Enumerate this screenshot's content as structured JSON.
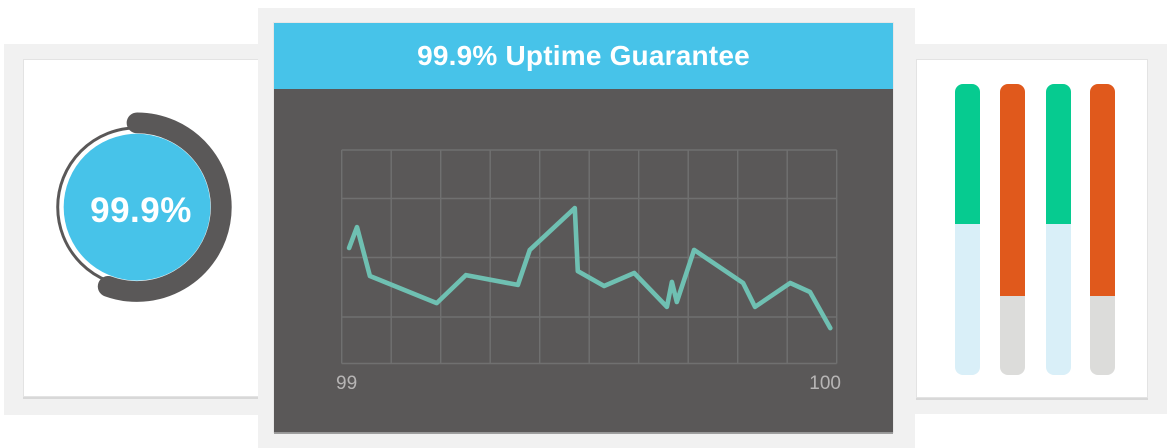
{
  "left_panel": {
    "gauge_label": "99.9%"
  },
  "center_panel": {
    "title": "99.9% Uptime Guarantee",
    "x_tick_left": "99",
    "x_tick_right": "100"
  },
  "colors": {
    "accent_blue": "#47c3e9",
    "dark_gray": "#5a5858",
    "frame_gray": "#f1f1f1",
    "teal_line": "#6fc0b2",
    "grid_gray": "#707070",
    "tick_gray": "#b7b5b5",
    "gauge_fill": "#47c3e9",
    "gauge_ring": "#5a5858",
    "bar_green": "#06cb90",
    "bar_orange": "#e0591c",
    "bar_lightblue": "#d9eff8",
    "bar_lightgray": "#dcdcda"
  },
  "chart_data": [
    {
      "type": "pie",
      "subtype": "gauge",
      "label": "99.9%",
      "value_percent": 99.9,
      "fill_color": "#47c3e9",
      "ring_color": "#5a5858"
    },
    {
      "type": "line",
      "title": "99.9% Uptime Guarantee",
      "line_color": "#6fc0b2",
      "grid": true,
      "x_range": [
        99,
        100
      ],
      "x_tick_labels": [
        "99",
        "100"
      ],
      "y_axis": "unlabeled, normalized 0-1 (estimated from pixels)",
      "points": [
        [
          99.015,
          0.541
        ],
        [
          99.031,
          0.639
        ],
        [
          99.057,
          0.41
        ],
        [
          99.192,
          0.283
        ],
        [
          99.251,
          0.414
        ],
        [
          99.356,
          0.368
        ],
        [
          99.38,
          0.532
        ],
        [
          99.471,
          0.728
        ],
        [
          99.477,
          0.433
        ],
        [
          99.53,
          0.363
        ],
        [
          99.591,
          0.424
        ],
        [
          99.657,
          0.265
        ],
        [
          99.667,
          0.382
        ],
        [
          99.677,
          0.288
        ],
        [
          99.712,
          0.532
        ],
        [
          99.811,
          0.377
        ],
        [
          99.835,
          0.265
        ],
        [
          99.906,
          0.377
        ],
        [
          99.946,
          0.335
        ],
        [
          99.987,
          0.166
        ]
      ]
    },
    {
      "type": "bar",
      "subtype": "stacked-vertical",
      "y_axis": "unlabeled, fractions estimated from pixels",
      "columns": [
        {
          "segments": [
            {
              "color": "#06cb90",
              "fraction": 0.48
            },
            {
              "color": "#d9eff8",
              "fraction": 0.52
            }
          ]
        },
        {
          "segments": [
            {
              "color": "#e0591c",
              "fraction": 0.73
            },
            {
              "color": "#dcdcda",
              "fraction": 0.27
            }
          ]
        },
        {
          "segments": [
            {
              "color": "#06cb90",
              "fraction": 0.48
            },
            {
              "color": "#d9eff8",
              "fraction": 0.52
            }
          ]
        },
        {
          "segments": [
            {
              "color": "#e0591c",
              "fraction": 0.73
            },
            {
              "color": "#dcdcda",
              "fraction": 0.27
            }
          ]
        }
      ]
    }
  ]
}
